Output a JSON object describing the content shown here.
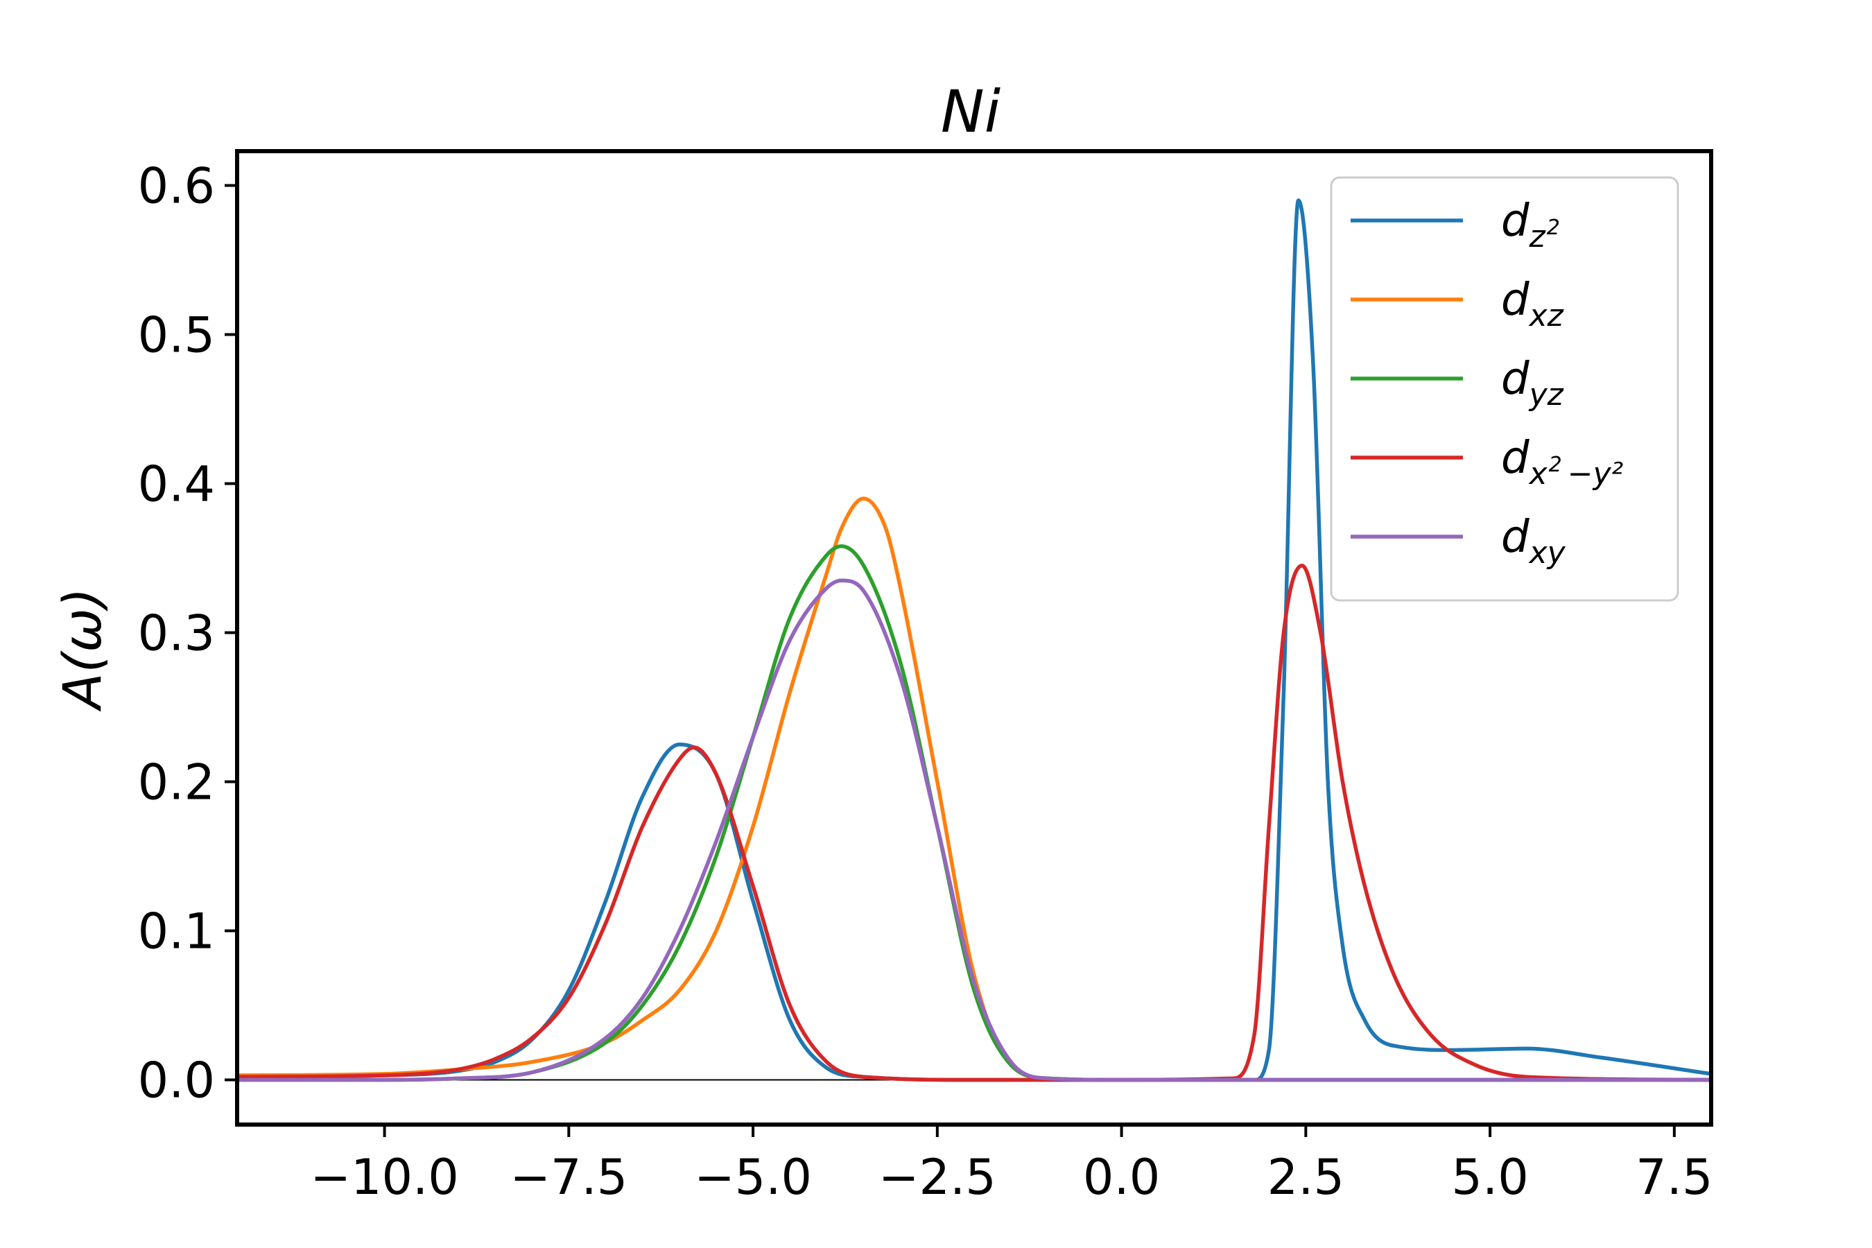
{
  "chart_data": {
    "type": "line",
    "title": "Ni",
    "xlabel": "",
    "ylabel": "A(ω)",
    "xlim": [
      -12,
      8
    ],
    "ylim": [
      -0.03,
      0.623
    ],
    "xticks": [
      -10.0,
      -7.5,
      -5.0,
      -2.5,
      0.0,
      2.5,
      5.0,
      7.5
    ],
    "xtick_labels": [
      "−10.0",
      "−7.5",
      "−5.0",
      "−2.5",
      "0.0",
      "2.5",
      "5.0",
      "7.5"
    ],
    "yticks": [
      0.0,
      0.1,
      0.2,
      0.3,
      0.4,
      0.5,
      0.6
    ],
    "ytick_labels": [
      "0.0",
      "0.1",
      "0.2",
      "0.3",
      "0.4",
      "0.5",
      "0.6"
    ],
    "grid": false,
    "zero_line": true,
    "legend_position": "top-right",
    "series": [
      {
        "name": "d_{z^2}",
        "legend": {
          "base": "d",
          "sub": "z",
          "sup": "2",
          "tail": ""
        },
        "color": "#1f77b4",
        "x": [
          -12,
          -10,
          -9,
          -8.5,
          -8,
          -7.5,
          -7,
          -6.5,
          -6,
          -5.5,
          -5,
          -4.5,
          -4,
          -3.5,
          -2,
          0,
          1.8,
          2.0,
          2.2,
          2.4,
          2.6,
          2.8,
          3.0,
          3.3,
          3.8,
          4.5,
          5.5,
          6.5,
          8
        ],
        "y": [
          0.002,
          0.003,
          0.006,
          0.012,
          0.027,
          0.06,
          0.12,
          0.19,
          0.225,
          0.205,
          0.12,
          0.04,
          0.008,
          0.002,
          0,
          0,
          0,
          0.02,
          0.26,
          0.59,
          0.48,
          0.2,
          0.09,
          0.04,
          0.022,
          0.02,
          0.021,
          0.015,
          0.004
        ]
      },
      {
        "name": "d_{xz}",
        "legend": {
          "base": "d",
          "sub": "xz",
          "sup": "",
          "tail": ""
        },
        "color": "#ff7f0e",
        "x": [
          -12,
          -10,
          -9,
          -8,
          -7,
          -6.5,
          -6,
          -5.5,
          -5,
          -4.5,
          -4,
          -3.8,
          -3.5,
          -3.2,
          -3,
          -2.5,
          -2,
          -1.5,
          -1,
          0,
          8
        ],
        "y": [
          0.003,
          0.004,
          0.007,
          0.012,
          0.025,
          0.04,
          0.06,
          0.1,
          0.17,
          0.26,
          0.34,
          0.37,
          0.39,
          0.37,
          0.33,
          0.2,
          0.07,
          0.01,
          0.001,
          0,
          0
        ]
      },
      {
        "name": "d_{yz}",
        "legend": {
          "base": "d",
          "sub": "yz",
          "sup": "",
          "tail": ""
        },
        "color": "#2ca02c",
        "x": [
          -12,
          -10,
          -9,
          -8,
          -7,
          -6.5,
          -6,
          -5.5,
          -5,
          -4.5,
          -4,
          -3.8,
          -3.5,
          -3,
          -2.5,
          -2,
          -1.5,
          -1,
          0,
          8
        ],
        "y": [
          0,
          0,
          0.001,
          0.005,
          0.025,
          0.05,
          0.09,
          0.15,
          0.23,
          0.31,
          0.352,
          0.358,
          0.345,
          0.28,
          0.17,
          0.06,
          0.01,
          0.001,
          0,
          0
        ]
      },
      {
        "name": "d_{x^2-y^2}",
        "legend": {
          "base": "d",
          "sub": "x",
          "sup": "2",
          "tail": "−y²"
        },
        "color": "#d62728",
        "x": [
          -12,
          -10,
          -9,
          -8.5,
          -8,
          -7.5,
          -7,
          -6.5,
          -6,
          -5.8,
          -5.5,
          -5,
          -4.5,
          -4,
          -3.5,
          -2,
          0,
          1.5,
          1.8,
          2.0,
          2.2,
          2.45,
          2.7,
          3.0,
          3.3,
          3.7,
          4.2,
          4.8,
          5.5,
          8
        ],
        "y": [
          0.002,
          0.003,
          0.007,
          0.014,
          0.028,
          0.055,
          0.105,
          0.17,
          0.215,
          0.223,
          0.205,
          0.13,
          0.05,
          0.012,
          0.002,
          0,
          0,
          0.001,
          0.03,
          0.17,
          0.3,
          0.345,
          0.3,
          0.2,
          0.13,
          0.07,
          0.03,
          0.01,
          0.002,
          0
        ]
      },
      {
        "name": "d_{xy}",
        "legend": {
          "base": "d",
          "sub": "xy",
          "sup": "",
          "tail": ""
        },
        "color": "#9467bd",
        "x": [
          -12,
          -10,
          -9,
          -8,
          -7,
          -6.5,
          -6,
          -5.5,
          -5,
          -4.5,
          -4,
          -3.8,
          -3.5,
          -3,
          -2.5,
          -2,
          -1.5,
          -1,
          0,
          8
        ],
        "y": [
          0,
          0,
          0.001,
          0.005,
          0.028,
          0.055,
          0.1,
          0.16,
          0.23,
          0.295,
          0.33,
          0.335,
          0.328,
          0.27,
          0.17,
          0.065,
          0.012,
          0.001,
          0,
          0
        ]
      }
    ]
  }
}
